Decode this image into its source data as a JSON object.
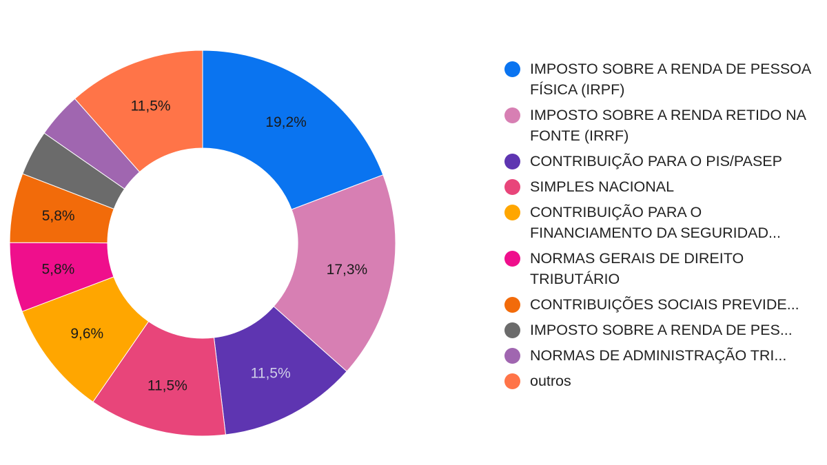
{
  "chart_data": {
    "type": "pie",
    "donut": true,
    "slices": [
      {
        "label": "IMPOSTO SOBRE A RENDA DE PESSOA FÍSICA (IRPF)",
        "value_pct": 19.2,
        "display": "19,2%",
        "color": "#0a74f0",
        "label_color": "#1a1a1a"
      },
      {
        "label": "IMPOSTO SOBRE A RENDA RETIDO NA FONTE (IRRF)",
        "value_pct": 17.3,
        "display": "17,3%",
        "color": "#d77fb3",
        "label_color": "#1a1a1a"
      },
      {
        "label": "CONTRIBUIÇÃO PARA O PIS/PASEP",
        "value_pct": 11.5,
        "display": "11,5%",
        "color": "#5e35b1",
        "label_color": "#cfcfe8"
      },
      {
        "label": "SIMPLES NACIONAL",
        "value_pct": 11.5,
        "display": "11,5%",
        "color": "#e8457a",
        "label_color": "#1a1a1a"
      },
      {
        "label": "CONTRIBUIÇÃO PARA O FINANCIAMENTO DA SEGURIDAD...",
        "value_pct": 9.6,
        "display": "9,6%",
        "color": "#ffa600",
        "label_color": "#1a1a1a"
      },
      {
        "label": "NORMAS GERAIS DE DIREITO TRIBUTÁRIO",
        "value_pct": 5.8,
        "display": "5,8%",
        "color": "#ef0f8c",
        "label_color": "#1a1a1a"
      },
      {
        "label": "CONTRIBUIÇÕES SOCIAIS PREVIDE...",
        "value_pct": 5.8,
        "display": "5,8%",
        "color": "#f26b0a",
        "label_color": "#1a1a1a"
      },
      {
        "label": "IMPOSTO SOBRE A RENDA DE PES...",
        "value_pct": 3.8,
        "display": "",
        "color": "#6b6b6b",
        "label_color": "#1a1a1a"
      },
      {
        "label": "NORMAS DE ADMINISTRAÇÃO TRI...",
        "value_pct": 3.8,
        "display": "",
        "color": "#a066b0",
        "label_color": "#1a1a1a"
      },
      {
        "label": "outros",
        "value_pct": 11.5,
        "display": "11,5%",
        "color": "#ff7448",
        "label_color": "#1a1a1a"
      }
    ],
    "legend": {
      "placement": "right",
      "items": [
        {
          "label": "IMPOSTO SOBRE A RENDA DE PESSOA FÍSICA (IRPF)",
          "color": "#0a74f0"
        },
        {
          "label": "IMPOSTO SOBRE A RENDA RETIDO NA FONTE (IRRF)",
          "color": "#d77fb3"
        },
        {
          "label": "CONTRIBUIÇÃO PARA O PIS/PASEP",
          "color": "#5e35b1"
        },
        {
          "label": "SIMPLES NACIONAL",
          "color": "#e8457a"
        },
        {
          "label": "CONTRIBUIÇÃO PARA O FINANCIAMENTO DA SEGURIDAD...",
          "color": "#ffa600"
        },
        {
          "label": "NORMAS GERAIS DE DIREITO TRIBUTÁRIO",
          "color": "#ef0f8c"
        },
        {
          "label": "CONTRIBUIÇÕES SOCIAIS PREVIDE...",
          "color": "#f26b0a"
        },
        {
          "label": "IMPOSTO SOBRE A RENDA DE PES...",
          "color": "#6b6b6b"
        },
        {
          "label": "NORMAS DE ADMINISTRAÇÃO TRI...",
          "color": "#a066b0"
        },
        {
          "label": "outros",
          "color": "#ff7448"
        }
      ]
    }
  }
}
